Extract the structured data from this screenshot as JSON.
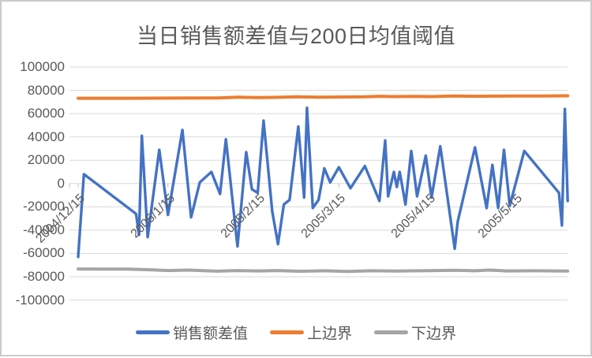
{
  "chart": {
    "title": "当日销售额差值与200日均值阈值",
    "colors": {
      "diff": "#4472C4",
      "upper": "#ED7D31",
      "lower": "#A5A5A5",
      "grid": "#D9D9D9",
      "tick": "#BFBFBF",
      "text": "#595959",
      "frame_border": "#CBCBCB"
    },
    "legend": [
      {
        "label": "销售额差值",
        "color_key": "diff"
      },
      {
        "label": "上边界",
        "color_key": "upper"
      },
      {
        "label": "下边界",
        "color_key": "lower"
      }
    ]
  },
  "chart_data": {
    "type": "line",
    "title": "当日销售额差值与200日均值阈值",
    "grid": "horizontal",
    "legend_position": "bottom",
    "y_axis": {
      "min": -100000,
      "max": 100000,
      "step": 20000,
      "tick_labels": [
        "100000",
        "80000",
        "60000",
        "40000",
        "20000",
        "0",
        "-20000",
        "-40000",
        "-60000",
        "-80000",
        "-100000"
      ],
      "tick_values": [
        100000,
        80000,
        60000,
        40000,
        20000,
        0,
        -20000,
        -40000,
        -60000,
        -80000,
        -100000
      ]
    },
    "x_axis": {
      "type": "date",
      "tick_labels": [
        "2004/12/15",
        "2005/1/15",
        "2005/2/15",
        "2005/3/15",
        "2005/4/15",
        "2005/5/15"
      ],
      "range": [
        "2004/12/15",
        "2005/6/2"
      ]
    },
    "series": [
      {
        "name": "下边界",
        "color_key": "lower",
        "width": 4,
        "points": [
          {
            "d": "2004/12/15",
            "v": -73300
          },
          {
            "d": "2005/1/1",
            "v": -73500
          },
          {
            "d": "2005/1/10",
            "v": -74100
          },
          {
            "d": "2005/1/15",
            "v": -74700
          },
          {
            "d": "2005/1/22",
            "v": -74300
          },
          {
            "d": "2005/2/1",
            "v": -75200
          },
          {
            "d": "2005/2/8",
            "v": -74700
          },
          {
            "d": "2005/2/15",
            "v": -75000
          },
          {
            "d": "2005/2/22",
            "v": -74700
          },
          {
            "d": "2005/3/1",
            "v": -75300
          },
          {
            "d": "2005/3/10",
            "v": -74900
          },
          {
            "d": "2005/3/18",
            "v": -75500
          },
          {
            "d": "2005/3/26",
            "v": -74900
          },
          {
            "d": "2005/4/5",
            "v": -75100
          },
          {
            "d": "2005/4/15",
            "v": -74800
          },
          {
            "d": "2005/4/24",
            "v": -74500
          },
          {
            "d": "2005/5/1",
            "v": -74900
          },
          {
            "d": "2005/5/6",
            "v": -74300
          },
          {
            "d": "2005/5/12",
            "v": -75000
          },
          {
            "d": "2005/5/22",
            "v": -74900
          },
          {
            "d": "2005/6/2",
            "v": -75100
          }
        ]
      },
      {
        "name": "上边界",
        "color_key": "upper",
        "width": 4,
        "points": [
          {
            "d": "2004/12/15",
            "v": 73200
          },
          {
            "d": "2005/1/1",
            "v": 73200
          },
          {
            "d": "2005/1/15",
            "v": 73300
          },
          {
            "d": "2005/2/1",
            "v": 73500
          },
          {
            "d": "2005/2/8",
            "v": 74100
          },
          {
            "d": "2005/2/15",
            "v": 73800
          },
          {
            "d": "2005/2/22",
            "v": 74000
          },
          {
            "d": "2005/3/1",
            "v": 74400
          },
          {
            "d": "2005/3/8",
            "v": 74100
          },
          {
            "d": "2005/3/15",
            "v": 74300
          },
          {
            "d": "2005/3/24",
            "v": 74500
          },
          {
            "d": "2005/3/29",
            "v": 74900
          },
          {
            "d": "2005/4/3",
            "v": 74600
          },
          {
            "d": "2005/4/10",
            "v": 74800
          },
          {
            "d": "2005/4/16",
            "v": 74600
          },
          {
            "d": "2005/4/24",
            "v": 75100
          },
          {
            "d": "2005/5/1",
            "v": 74900
          },
          {
            "d": "2005/5/8",
            "v": 75000
          },
          {
            "d": "2005/5/15",
            "v": 75100
          },
          {
            "d": "2005/5/25",
            "v": 75100
          },
          {
            "d": "2005/6/2",
            "v": 75300
          }
        ]
      },
      {
        "name": "销售额差值",
        "color_key": "diff",
        "width": 3.4,
        "points": [
          {
            "d": "2004/12/15",
            "v": -63000
          },
          {
            "d": "2004/12/17",
            "v": 8000
          },
          {
            "d": "2005/1/4",
            "v": -26000
          },
          {
            "d": "2005/1/5",
            "v": -44000
          },
          {
            "d": "2005/1/6",
            "v": 41000
          },
          {
            "d": "2005/1/8",
            "v": -46000
          },
          {
            "d": "2005/1/12",
            "v": 29000
          },
          {
            "d": "2005/1/15",
            "v": -27000
          },
          {
            "d": "2005/1/20",
            "v": 46000
          },
          {
            "d": "2005/1/23",
            "v": -29000
          },
          {
            "d": "2005/1/26",
            "v": 1000
          },
          {
            "d": "2005/1/30",
            "v": 10000
          },
          {
            "d": "2005/2/2",
            "v": -9000
          },
          {
            "d": "2005/2/4",
            "v": 38000
          },
          {
            "d": "2005/2/8",
            "v": -54000
          },
          {
            "d": "2005/2/11",
            "v": 27000
          },
          {
            "d": "2005/2/13",
            "v": -5000
          },
          {
            "d": "2005/2/15",
            "v": -8000
          },
          {
            "d": "2005/2/17",
            "v": 54000
          },
          {
            "d": "2005/2/20",
            "v": -24000
          },
          {
            "d": "2005/2/22",
            "v": -52000
          },
          {
            "d": "2005/2/24",
            "v": -18000
          },
          {
            "d": "2005/2/26",
            "v": -14000
          },
          {
            "d": "2005/3/1",
            "v": 49000
          },
          {
            "d": "2005/3/3",
            "v": -12000
          },
          {
            "d": "2005/3/4",
            "v": 65000
          },
          {
            "d": "2005/3/6",
            "v": -21000
          },
          {
            "d": "2005/3/8",
            "v": -14000
          },
          {
            "d": "2005/3/10",
            "v": 13000
          },
          {
            "d": "2005/3/12",
            "v": 1000
          },
          {
            "d": "2005/3/15",
            "v": 14000
          },
          {
            "d": "2005/3/19",
            "v": -4000
          },
          {
            "d": "2005/3/24",
            "v": 15000
          },
          {
            "d": "2005/3/29",
            "v": -15000
          },
          {
            "d": "2005/3/31",
            "v": 37000
          },
          {
            "d": "2005/4/1",
            "v": -11000
          },
          {
            "d": "2005/4/3",
            "v": 10000
          },
          {
            "d": "2005/4/4",
            "v": -3000
          },
          {
            "d": "2005/4/5",
            "v": 10000
          },
          {
            "d": "2005/4/7",
            "v": -18000
          },
          {
            "d": "2005/4/9",
            "v": 28000
          },
          {
            "d": "2005/4/11",
            "v": -11000
          },
          {
            "d": "2005/4/14",
            "v": 24000
          },
          {
            "d": "2005/4/16",
            "v": -12000
          },
          {
            "d": "2005/4/19",
            "v": 32000
          },
          {
            "d": "2005/4/24",
            "v": -56000
          },
          {
            "d": "2005/4/25",
            "v": -33000
          },
          {
            "d": "2005/5/1",
            "v": 31000
          },
          {
            "d": "2005/5/5",
            "v": -21000
          },
          {
            "d": "2005/5/7",
            "v": 16000
          },
          {
            "d": "2005/5/9",
            "v": -21000
          },
          {
            "d": "2005/5/11",
            "v": 29000
          },
          {
            "d": "2005/5/13",
            "v": -19000
          },
          {
            "d": "2005/5/18",
            "v": 28000
          },
          {
            "d": "2005/5/30",
            "v": -8000
          },
          {
            "d": "2005/5/31",
            "v": -36000
          },
          {
            "d": "2005/6/1",
            "v": 64000
          },
          {
            "d": "2005/6/2",
            "v": -15000
          }
        ]
      }
    ]
  }
}
